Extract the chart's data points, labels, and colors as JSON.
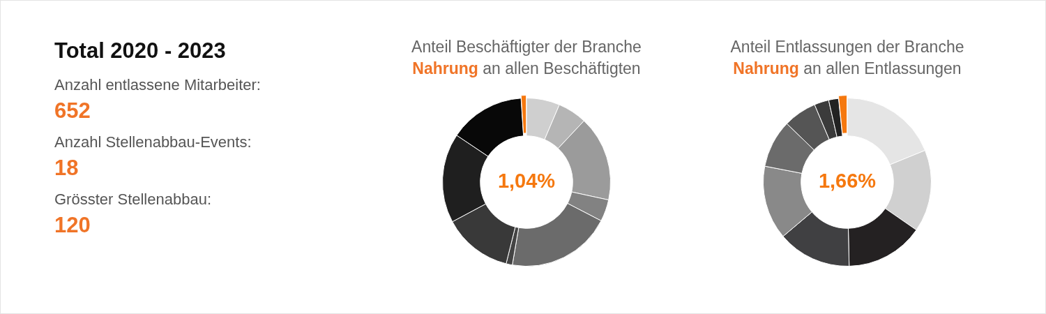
{
  "chart_data": [
    {
      "type": "other",
      "title": "Total 2020 - 2023",
      "annotations": [
        "Anzahl entlassene Mitarbeiter:",
        "652",
        "Anzahl Stellenabbau-Events:",
        "18",
        "Grösster Stellenabbau:",
        "120"
      ]
    },
    {
      "type": "donut",
      "title": "Anteil Beschäftigter der Branche",
      "subtitle": "Nahrung an allen Beschäftigten",
      "categories": [
        null,
        null,
        null,
        null,
        null,
        null,
        null,
        null,
        null,
        null
      ],
      "values": [
        6.4,
        5.6,
        16.4,
        4.2,
        20.1,
        1.2,
        13.3,
        17.2,
        14.56,
        1.04
      ],
      "colors": [
        "#cfcfcf",
        "#b5b5b5",
        "#9b9b9b",
        "#828282",
        "#6b6b6b",
        "#444444",
        "#393939",
        "#1f1f1f",
        "#080808",
        "#f5780f"
      ],
      "value_labels": [
        null,
        null,
        null,
        null,
        null,
        null,
        null,
        null,
        null,
        "1,04%"
      ]
    },
    {
      "type": "donut",
      "title": "Anteil Entlassungen der Branche",
      "subtitle": "Nahrung an allen Entlassungen",
      "categories": [
        null,
        null,
        null,
        null,
        null,
        null,
        null,
        null,
        null,
        null
      ],
      "values": [
        18.84,
        15.8,
        15.0,
        14.2,
        14.2,
        9.2,
        6.4,
        2.8,
        1.9,
        1.66
      ],
      "colors": [
        "#e5e5e5",
        "#d0d0d0",
        "#242122",
        "#404042",
        "#898989",
        "#6b6b6b",
        "#555555",
        "#3b3b3b",
        "#222222",
        "#f5780f"
      ],
      "value_labels": [
        null,
        null,
        null,
        null,
        null,
        null,
        null,
        null,
        null,
        "1,66%"
      ]
    }
  ]
}
